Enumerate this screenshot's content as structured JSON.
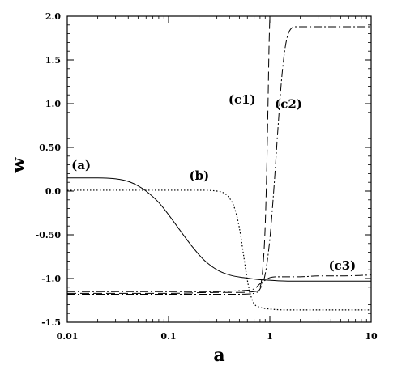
{
  "chart_data": {
    "type": "line",
    "xlabel": "a",
    "ylabel": "w",
    "xscale": "log",
    "xlim": [
      0.01,
      10
    ],
    "ylim": [
      -1.5,
      2.0
    ],
    "xticks": [
      "0.01",
      "0.1",
      "1",
      "10"
    ],
    "yticks": [
      "2.0",
      "1.5",
      "1.0",
      "0.50",
      "0.0",
      "-0.50",
      "-1.0",
      "-1.5"
    ],
    "grid": false,
    "annotations": [
      {
        "text": "(a)",
        "x": 0.011,
        "y": 0.25
      },
      {
        "text": "(b)",
        "x": 0.16,
        "y": 0.13
      },
      {
        "text": "(c1)",
        "x": 0.39,
        "y": 1.0
      },
      {
        "text": "(c2)",
        "x": 1.12,
        "y": 0.95
      },
      {
        "text": "(c3)",
        "x": 3.8,
        "y": -0.9
      }
    ],
    "series": [
      {
        "label": "(a)",
        "style": "solid",
        "x": [
          0.01,
          0.02,
          0.03,
          0.04,
          0.05,
          0.06,
          0.08,
          0.1,
          0.13,
          0.17,
          0.22,
          0.3,
          0.4,
          0.55,
          0.75,
          1.0,
          1.5,
          2,
          3,
          5,
          7,
          10
        ],
        "y": [
          0.15,
          0.15,
          0.14,
          0.11,
          0.06,
          0.0,
          -0.13,
          -0.27,
          -0.45,
          -0.63,
          -0.78,
          -0.9,
          -0.96,
          -0.99,
          -1.01,
          -1.02,
          -1.03,
          -1.03,
          -1.03,
          -1.03,
          -1.03,
          -1.03
        ]
      },
      {
        "label": "(b)",
        "style": "dotted",
        "x": [
          0.01,
          0.05,
          0.1,
          0.2,
          0.3,
          0.35,
          0.4,
          0.45,
          0.5,
          0.55,
          0.6,
          0.65,
          0.7,
          0.8,
          1.0,
          1.5,
          2,
          3,
          5,
          10
        ],
        "y": [
          0.01,
          0.01,
          0.01,
          0.01,
          0.0,
          -0.02,
          -0.08,
          -0.2,
          -0.42,
          -0.73,
          -1.02,
          -1.2,
          -1.29,
          -1.33,
          -1.35,
          -1.36,
          -1.36,
          -1.36,
          -1.36,
          -1.36
        ]
      },
      {
        "label": "(c1)",
        "style": "dashed",
        "x": [
          0.01,
          0.1,
          0.3,
          0.5,
          0.7,
          0.8,
          0.85,
          0.9,
          0.93,
          0.96,
          0.98,
          1.0
        ],
        "y": [
          -1.17,
          -1.17,
          -1.16,
          -1.16,
          -1.15,
          -1.1,
          -0.9,
          -0.4,
          0.2,
          1.0,
          1.6,
          2.0
        ]
      },
      {
        "label": "(c2)",
        "style": "dashdot",
        "x": [
          0.01,
          0.1,
          0.3,
          0.5,
          0.7,
          0.8,
          0.9,
          1.0,
          1.1,
          1.2,
          1.3,
          1.4,
          1.5,
          1.6,
          1.8,
          2.0,
          3,
          5,
          10
        ],
        "y": [
          -1.18,
          -1.18,
          -1.18,
          -1.18,
          -1.17,
          -1.12,
          -0.95,
          -0.55,
          0.05,
          0.7,
          1.25,
          1.6,
          1.78,
          1.85,
          1.88,
          1.88,
          1.88,
          1.88,
          1.88
        ]
      },
      {
        "label": "(c3)",
        "style": "dashdot",
        "x": [
          0.01,
          0.1,
          0.3,
          0.5,
          0.7,
          0.8,
          0.9,
          1.0,
          1.2,
          1.5,
          2,
          3,
          5,
          10
        ],
        "y": [
          -1.15,
          -1.15,
          -1.15,
          -1.14,
          -1.12,
          -1.06,
          -1.02,
          -0.99,
          -0.98,
          -0.98,
          -0.98,
          -0.97,
          -0.97,
          -0.96
        ]
      }
    ]
  }
}
